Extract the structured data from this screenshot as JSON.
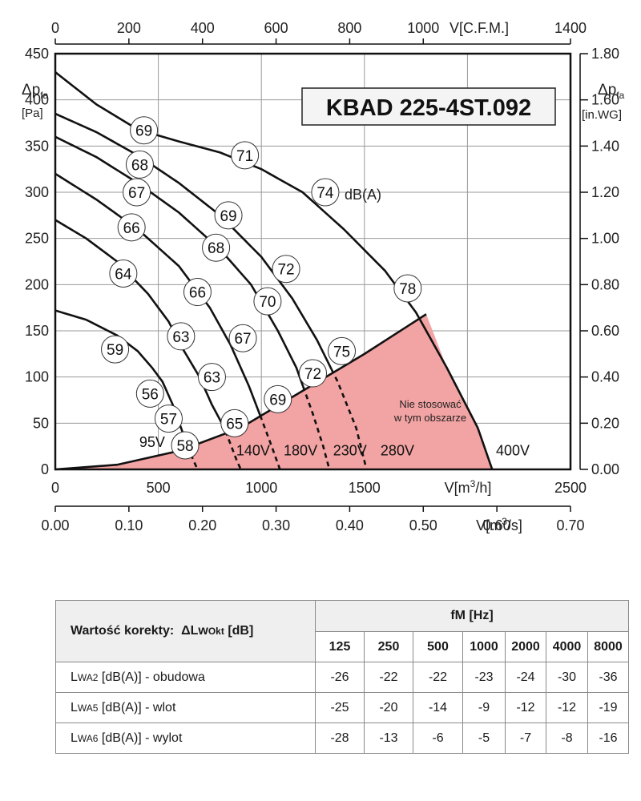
{
  "chart_data": {
    "type": "line",
    "title": "KBAD 225-4ST.092",
    "axes": {
      "left": {
        "label_main": "Δp",
        "label_sub": "fa",
        "unit": "[Pa]",
        "range": [
          0,
          450
        ],
        "ticks": [
          "0",
          "50",
          "100",
          "150",
          "200",
          "250",
          "300",
          "350",
          "400",
          "450"
        ]
      },
      "right": {
        "label_main": "Δp",
        "label_sub": "fa",
        "unit": "[in.WG]",
        "range": [
          0,
          1.8
        ],
        "ticks": [
          "0.00",
          "0.20",
          "0.40",
          "0.60",
          "0.80",
          "1.00",
          "1.20",
          "1.40",
          "1.60",
          "1.80"
        ]
      },
      "top": {
        "label": "V[C.F.M.]",
        "range": [
          0,
          1400
        ],
        "ticks": [
          "0",
          "200",
          "400",
          "600",
          "800",
          "1000",
          "1400"
        ]
      },
      "bottom": {
        "label": "V[m³/h]",
        "range": [
          0,
          2500
        ],
        "ticks": [
          "0",
          "500",
          "1000",
          "1500",
          "2500"
        ]
      },
      "bottom2": {
        "label": "V[m³/s]",
        "range": [
          0,
          0.7
        ],
        "ticks": [
          "0.00",
          "0.10",
          "0.20",
          "0.30",
          "0.40",
          "0.50",
          "0.60",
          "0.70"
        ]
      }
    },
    "grid": true,
    "series": [
      {
        "name": "95V",
        "points": [
          [
            0,
            172
          ],
          [
            150,
            162
          ],
          [
            300,
            145
          ],
          [
            400,
            128
          ],
          [
            470,
            110
          ],
          [
            520,
            95
          ],
          [
            570,
            70
          ],
          [
            610,
            45
          ],
          [
            650,
            20
          ],
          [
            690,
            0
          ]
        ]
      },
      {
        "name": "140V",
        "points": [
          [
            0,
            270
          ],
          [
            150,
            250
          ],
          [
            300,
            225
          ],
          [
            450,
            190
          ],
          [
            550,
            160
          ],
          [
            620,
            130
          ],
          [
            700,
            100
          ],
          [
            760,
            70
          ],
          [
            820,
            45
          ],
          [
            880,
            10
          ],
          [
            900,
            0
          ]
        ]
      },
      {
        "name": "180V",
        "points": [
          [
            0,
            320
          ],
          [
            200,
            292
          ],
          [
            400,
            260
          ],
          [
            600,
            220
          ],
          [
            750,
            175
          ],
          [
            850,
            135
          ],
          [
            940,
            90
          ],
          [
            1000,
            55
          ],
          [
            1050,
            25
          ],
          [
            1090,
            0
          ]
        ]
      },
      {
        "name": "230V",
        "points": [
          [
            0,
            360
          ],
          [
            200,
            338
          ],
          [
            400,
            310
          ],
          [
            600,
            278
          ],
          [
            800,
            238
          ],
          [
            950,
            200
          ],
          [
            1080,
            150
          ],
          [
            1170,
            110
          ],
          [
            1250,
            60
          ],
          [
            1300,
            25
          ],
          [
            1330,
            0
          ]
        ]
      },
      {
        "name": "280V",
        "points": [
          [
            0,
            385
          ],
          [
            200,
            365
          ],
          [
            400,
            340
          ],
          [
            600,
            310
          ],
          [
            800,
            275
          ],
          [
            1000,
            230
          ],
          [
            1150,
            185
          ],
          [
            1270,
            140
          ],
          [
            1370,
            95
          ],
          [
            1460,
            45
          ],
          [
            1510,
            0
          ]
        ]
      },
      {
        "name": "400V",
        "points": [
          [
            0,
            430
          ],
          [
            200,
            395
          ],
          [
            400,
            368
          ],
          [
            600,
            355
          ],
          [
            800,
            343
          ],
          [
            1000,
            325
          ],
          [
            1200,
            300
          ],
          [
            1400,
            260
          ],
          [
            1600,
            215
          ],
          [
            1750,
            170
          ],
          [
            1900,
            110
          ],
          [
            2050,
            45
          ],
          [
            2120,
            0
          ]
        ]
      }
    ],
    "boundary_curve": [
      [
        0,
        0
      ],
      [
        300,
        5
      ],
      [
        600,
        20
      ],
      [
        900,
        45
      ],
      [
        1200,
        85
      ],
      [
        1500,
        125
      ],
      [
        1800,
        168
      ]
    ],
    "db_labels": [
      {
        "text": "69",
        "x": 430,
        "y": 367
      },
      {
        "text": "71",
        "x": 920,
        "y": 340
      },
      {
        "text": "74",
        "x": 1310,
        "y": 300
      },
      {
        "text": "78",
        "x": 1710,
        "y": 196
      },
      {
        "text": "68",
        "x": 410,
        "y": 330
      },
      {
        "text": "67",
        "x": 395,
        "y": 300
      },
      {
        "text": "69",
        "x": 840,
        "y": 275
      },
      {
        "text": "68",
        "x": 780,
        "y": 240
      },
      {
        "text": "72",
        "x": 1120,
        "y": 217
      },
      {
        "text": "66",
        "x": 370,
        "y": 262
      },
      {
        "text": "66",
        "x": 690,
        "y": 192
      },
      {
        "text": "70",
        "x": 1030,
        "y": 182
      },
      {
        "text": "64",
        "x": 330,
        "y": 212
      },
      {
        "text": "63",
        "x": 610,
        "y": 144
      },
      {
        "text": "67",
        "x": 910,
        "y": 142
      },
      {
        "text": "75",
        "x": 1390,
        "y": 128
      },
      {
        "text": "59",
        "x": 290,
        "y": 130
      },
      {
        "text": "63",
        "x": 760,
        "y": 100
      },
      {
        "text": "72",
        "x": 1250,
        "y": 104
      },
      {
        "text": "56",
        "x": 460,
        "y": 82
      },
      {
        "text": "69",
        "x": 1080,
        "y": 76
      },
      {
        "text": "57",
        "x": 550,
        "y": 55
      },
      {
        "text": "65",
        "x": 870,
        "y": 50
      },
      {
        "text": "58",
        "x": 630,
        "y": 26
      }
    ],
    "dba_unit": "dB(A)",
    "voltage_labels": [
      {
        "text": "95V",
        "x": 470,
        "y": 26
      },
      {
        "text": "140V",
        "x": 960,
        "y": 17
      },
      {
        "text": "180V",
        "x": 1190,
        "y": 17
      },
      {
        "text": "230V",
        "x": 1430,
        "y": 17
      },
      {
        "text": "280V",
        "x": 1660,
        "y": 17
      },
      {
        "text": "400V",
        "x": 2220,
        "y": 17
      }
    ],
    "forbidden_zone_text": [
      "Nie stosować",
      "w tym obszarze"
    ],
    "forbidden_zone_color": "#f2a3a3"
  },
  "table": {
    "label_prefix": "Wartość korekty:",
    "label_main": "ΔLw",
    "label_sub": "Okt",
    "label_unit": "[dB]",
    "fm_header": "fM [Hz]",
    "frequencies": [
      "125",
      "250",
      "500",
      "1000",
      "2000",
      "4000",
      "8000"
    ],
    "rows": [
      {
        "label_prefix": "L",
        "label_sub": "WA2",
        "label_rest": "[dB(A)] - obudowa",
        "values": [
          "-26",
          "-22",
          "-22",
          "-23",
          "-24",
          "-30",
          "-36"
        ]
      },
      {
        "label_prefix": "L",
        "label_sub": "WA5",
        "label_rest": "[dB(A)] - wlot",
        "values": [
          "-25",
          "-20",
          "-14",
          "-9",
          "-12",
          "-12",
          "-19"
        ]
      },
      {
        "label_prefix": "L",
        "label_sub": "WA6",
        "label_rest": "[dB(A)] - wylot",
        "values": [
          "-28",
          "-13",
          "-6",
          "-5",
          "-7",
          "-8",
          "-16"
        ]
      }
    ]
  }
}
